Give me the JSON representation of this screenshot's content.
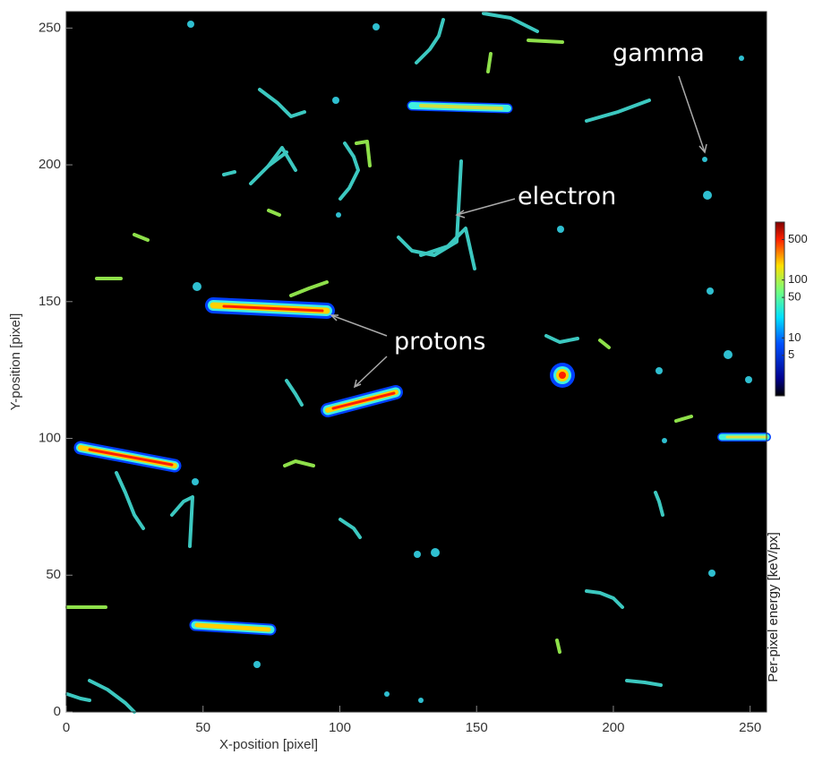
{
  "chart_data": {
    "type": "image",
    "xlabel": "X-position [pixel]",
    "ylabel": "Y-position [pixel]",
    "xlim": [
      0,
      256
    ],
    "ylim": [
      0,
      256
    ],
    "xticks": [
      0,
      50,
      100,
      150,
      200,
      250
    ],
    "yticks": [
      0,
      50,
      100,
      150,
      200,
      250
    ],
    "colorbar": {
      "label": "Per-pixel energy [keV/px]",
      "lim": [
        1,
        1000
      ],
      "log": true,
      "ticks": [
        5,
        10,
        50,
        100,
        500
      ]
    },
    "annotations": [
      "gamma",
      "electron",
      "protons"
    ]
  }
}
